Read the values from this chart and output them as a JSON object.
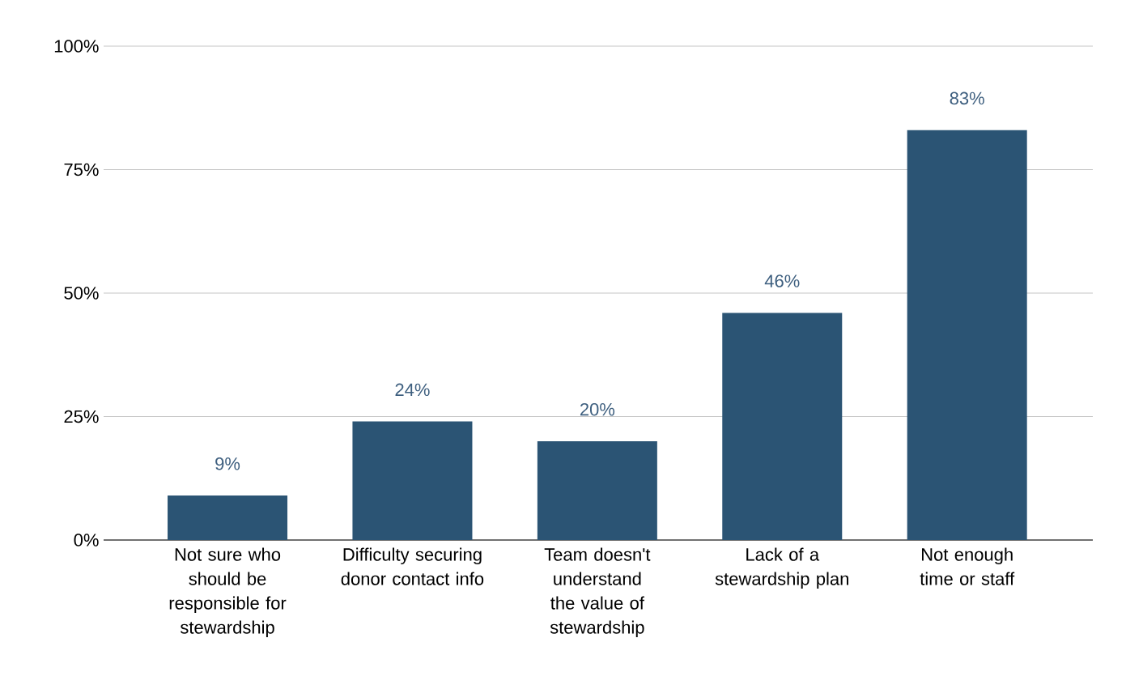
{
  "chart_data": {
    "type": "bar",
    "categories": [
      "Not sure who should be responsible for stewardship",
      "Difficulty securing donor contact info",
      "Team doesn't understand the value of stewardship",
      "Lack of a stewardship plan",
      "Not enough time or staff"
    ],
    "values": [
      9,
      24,
      20,
      46,
      83
    ],
    "value_labels": [
      "9%",
      "24%",
      "20%",
      "46%",
      "83%"
    ],
    "color": "#2b5474",
    "ylim": [
      0,
      100
    ],
    "yticks": [
      {
        "value": 0,
        "label": "0%"
      },
      {
        "value": 25,
        "label": "25%"
      },
      {
        "value": 50,
        "label": "50%"
      },
      {
        "value": 75,
        "label": "75%"
      },
      {
        "value": 100,
        "label": "100%"
      }
    ],
    "grid": "y"
  }
}
